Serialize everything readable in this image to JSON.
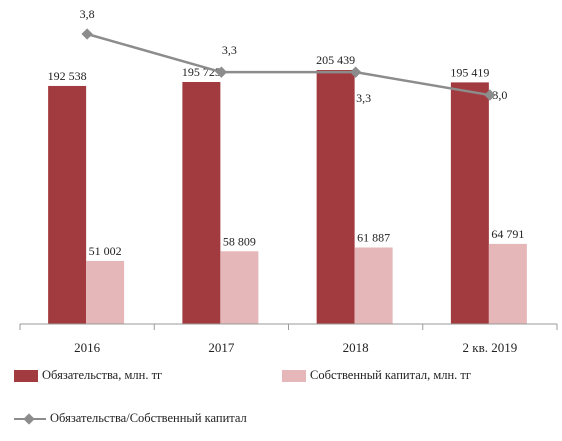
{
  "chart_data": {
    "type": "bar",
    "categories": [
      "2016",
      "2017",
      "2018",
      "2 кв. 2019"
    ],
    "series": [
      {
        "name": "Обязательства, млн. тг",
        "kind": "bar",
        "color": "#a23b3f",
        "values": [
          192538,
          195725,
          205439,
          195419
        ],
        "labels": [
          "192 538",
          "195 725",
          "205 439",
          "195 419"
        ]
      },
      {
        "name": "Собственный капитал, млн. тг",
        "kind": "bar",
        "color": "#e6b7b8",
        "values": [
          51002,
          58809,
          61887,
          64791
        ],
        "labels": [
          "51 002",
          "58 809",
          "61 887",
          "64 791"
        ]
      },
      {
        "name": "Обязательства/Собственный капитал",
        "kind": "line",
        "axis": "secondary",
        "color": "#8c8c8c",
        "values": [
          3.8,
          3.3,
          3.3,
          3.0
        ],
        "labels": [
          "3,8",
          "3,3",
          "3,3",
          "3,0"
        ]
      }
    ],
    "ylim": [
      0,
      205439
    ],
    "y2lim": [
      0,
      3.8
    ],
    "gridlines": false,
    "legend_position": "bottom"
  }
}
